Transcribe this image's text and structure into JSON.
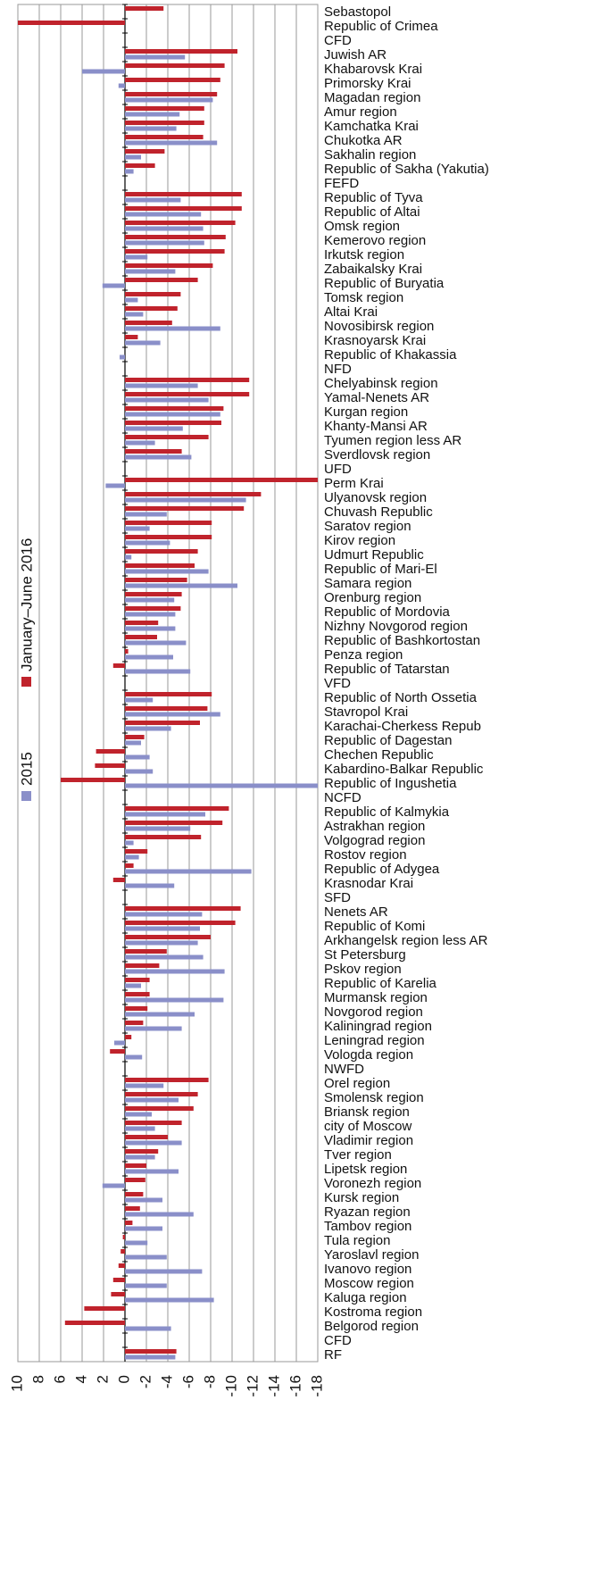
{
  "chart_data": {
    "type": "bar",
    "orientation": "horizontal",
    "categories": [
      "Sebastopol",
      "Republic of Crimea",
      "CFD",
      "Juwish AR",
      "Khabarovsk Krai",
      "Primorsky Krai",
      "Magadan region",
      "Amur region",
      "Kamchatka Krai",
      "Chukotka AR",
      "Sakhalin region",
      "Republic of Sakha (Yakutia)",
      "FEFD",
      "Republic of Tyva",
      "Republic of Altai",
      "Omsk region",
      "Kemerovo region",
      "Irkutsk region",
      "Zabaikalsky Krai",
      "Republic of Buryatia",
      "Tomsk region",
      "Altai Krai",
      "Novosibirsk region",
      "Krasnoyarsk Krai",
      "Republic of Khakassia",
      "NFD",
      "Chelyabinsk region",
      "Yamal-Nenets AR",
      "Kurgan region",
      "Khanty-Mansi AR",
      "Tyumen region less AR",
      "Sverdlovsk region",
      "UFD",
      "Perm Krai",
      "Ulyanovsk region",
      "Chuvash Republic",
      "Saratov region",
      "Kirov region",
      "Udmurt Republic",
      "Republic of Mari-El",
      "Samara region",
      "Orenburg region",
      "Republic of Mordovia",
      "Nizhny Novgorod region",
      "Republic of Bashkortostan",
      "Penza region",
      "Republic of Tatarstan",
      "VFD",
      "Republic of North Ossetia",
      "Stavropol Krai",
      "Karachai-Cherkess Repub",
      "Republic of Dagestan",
      "Chechen Republic",
      "Kabardino-Balkar Republic",
      "Republic of Ingushetia",
      "NCFD",
      "Republic of Kalmykia",
      "Astrakhan region",
      "Volgograd region",
      "Rostov region",
      "Republic of Adygea",
      "Krasnodar Krai",
      "SFD",
      "Nenets AR",
      "Republic of Komi",
      "Arkhangelsk region less AR",
      "St Petersburg",
      "Pskov region",
      "Republic of Karelia",
      "Murmansk region",
      "Novgorod region",
      "Kaliningrad region",
      "Leningrad region",
      "Vologda region",
      "NWFD",
      "Orel region",
      "Smolensk region",
      "Briansk region",
      "city of Moscow",
      "Vladimir region",
      "Tver region",
      "Lipetsk region",
      "Voronezh region",
      "Kursk region",
      "Ryazan region",
      "Tambov region",
      "Tula region",
      "Yaroslavl region",
      "Ivanovo region",
      "Moscow region",
      "Kaluga region",
      "Kostroma region",
      "Belgorod region",
      "CFD",
      "RF"
    ],
    "series": [
      {
        "name": "January–June 2016",
        "color": "#c0232c",
        "values": [
          -3.6,
          10,
          null,
          -10.5,
          -9.3,
          -8.9,
          -8.6,
          -7.4,
          -7.4,
          -7.3,
          -3.7,
          -2.8,
          null,
          -10.9,
          -10.9,
          -10.3,
          -9.4,
          -9.3,
          -8.2,
          -6.8,
          -5.2,
          -4.9,
          -4.4,
          -1.2,
          null,
          null,
          -11.6,
          -11.6,
          -9.2,
          -9.0,
          -7.8,
          -5.3,
          null,
          -18,
          -12.7,
          -11.1,
          -8.1,
          -8.1,
          -6.8,
          -6.5,
          -5.8,
          -5.3,
          -5.2,
          -3.1,
          -3.0,
          -0.3,
          1.1,
          null,
          -8.1,
          -7.7,
          -7.0,
          -1.8,
          2.7,
          2.8,
          6.0,
          null,
          -9.7,
          -9.1,
          -7.1,
          -2.1,
          -0.8,
          1.1,
          null,
          -10.8,
          -10.3,
          -8.0,
          -3.9,
          -3.2,
          -2.3,
          -2.3,
          -2.1,
          -1.7,
          -0.6,
          1.4,
          null,
          -7.8,
          -6.8,
          -6.4,
          -5.3,
          -4.0,
          -3.1,
          -2.0,
          -1.9,
          -1.7,
          -1.4,
          -0.7,
          0.2,
          0.4,
          0.6,
          1.1,
          1.3,
          3.8,
          5.6,
          null,
          -4.8
        ]
      },
      {
        "name": "2015",
        "color": "#8a8fc9",
        "values": [
          null,
          null,
          null,
          -5.6,
          4.0,
          0.6,
          -8.2,
          -5.1,
          -4.8,
          -8.6,
          -1.5,
          -0.8,
          null,
          -5.2,
          -7.1,
          -7.3,
          -7.4,
          -2.1,
          -4.7,
          2.1,
          -1.2,
          -1.7,
          -8.9,
          -3.3,
          0.5,
          null,
          -6.8,
          -7.8,
          -8.9,
          -5.4,
          -2.8,
          -6.2,
          null,
          1.8,
          -11.3,
          -3.9,
          -2.3,
          -4.2,
          -0.6,
          -7.8,
          -10.5,
          -4.6,
          -4.7,
          -4.7,
          -5.7,
          -4.5,
          -6.1,
          null,
          -2.6,
          -8.9,
          -4.3,
          -1.5,
          -2.3,
          -2.6,
          -18,
          null,
          -7.5,
          -6.1,
          -0.8,
          -1.3,
          -11.8,
          -4.6,
          null,
          -7.2,
          -7.0,
          -6.8,
          -7.3,
          -9.3,
          -1.5,
          -9.2,
          -6.5,
          -5.3,
          1.0,
          -1.6,
          null,
          -3.6,
          -5.0,
          -2.5,
          -2.8,
          -5.3,
          -2.8,
          -5.0,
          2.1,
          -3.5,
          -6.4,
          -3.5,
          -2.1,
          -3.9,
          -7.2,
          -3.9,
          -8.3,
          null,
          -4.3,
          null,
          -4.7
        ]
      }
    ],
    "xlim": [
      10,
      -18
    ],
    "xticks": [
      10,
      8,
      6,
      4,
      2,
      0,
      -2,
      -4,
      -6,
      -8,
      -10,
      -12,
      -14,
      -16,
      -18
    ],
    "grid": true
  }
}
